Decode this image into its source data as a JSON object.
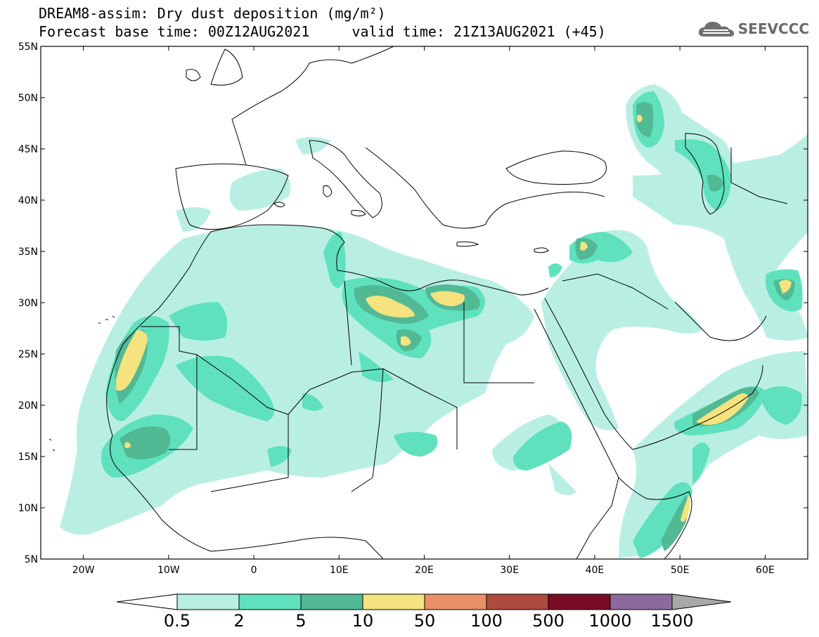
{
  "title": {
    "line1": "DREAM8-assim: Dry dust deposition (mg/m²)",
    "line2": "Forecast base time: 00Z12AUG2021     valid time: 21Z13AUG2021 (+45)"
  },
  "logo": {
    "text": "SEEVCCC",
    "icon": "cloud-icon",
    "color": "#6a6a6a"
  },
  "map": {
    "lon_range": [
      -25,
      65
    ],
    "lat_range": [
      5,
      55
    ],
    "lat_labels": [
      "55N",
      "50N",
      "45N",
      "40N",
      "35N",
      "30N",
      "25N",
      "20N",
      "15N",
      "10N",
      "5N"
    ],
    "lon_labels": [
      "20W",
      "10W",
      "0",
      "10E",
      "20E",
      "30E",
      "40E",
      "50E",
      "60E"
    ]
  },
  "colorbar": {
    "labels": [
      "0.5",
      "2",
      "5",
      "10",
      "50",
      "100",
      "500",
      "1000",
      "1500"
    ],
    "colors": [
      "#b9efe3",
      "#5fe1bd",
      "#52b995",
      "#f4e37e",
      "#e9916a",
      "#ad4b3f",
      "#7a0c26",
      "#8c6b9c"
    ],
    "extend_low_color": "#ffffff",
    "extend_high_color": "#a8a8a8"
  }
}
